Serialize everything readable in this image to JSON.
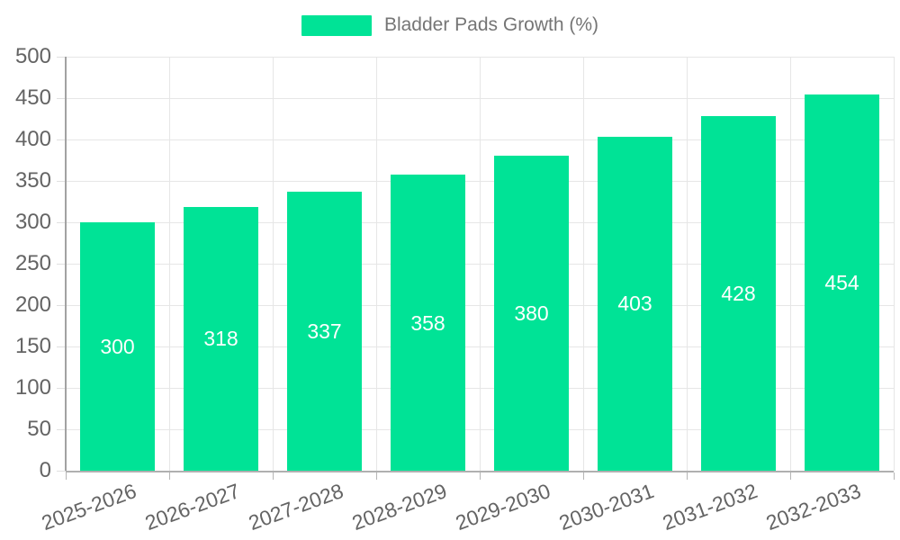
{
  "legend": {
    "items": [
      {
        "label": "Bladder Pads Growth (%)",
        "color": "#00E396"
      }
    ]
  },
  "chart_data": {
    "type": "bar",
    "title": "",
    "categories": [
      "2025-2026",
      "2026-2027",
      "2027-2028",
      "2028-2029",
      "2029-2030",
      "2030-2031",
      "2031-2032",
      "2032-2033"
    ],
    "series": [
      {
        "name": "Bladder Pads Growth (%)",
        "values": [
          300,
          318,
          337,
          358,
          380,
          403,
          428,
          454
        ],
        "color": "#00E396"
      }
    ],
    "value_labels": [
      300,
      318,
      337,
      358,
      380,
      403,
      428,
      454
    ],
    "xlabel": "",
    "ylabel": "",
    "ylim": [
      0,
      500
    ],
    "ytick_step": 50,
    "ytick_labels": [
      "0",
      "50",
      "100",
      "150",
      "200",
      "250",
      "300",
      "350",
      "400",
      "450",
      "500"
    ],
    "grid": true,
    "legend_position": "top-center",
    "value_label_position": "inside-center",
    "x_label_rotation_deg": -20,
    "colors": {
      "bar": "#00E396",
      "grid_line": "#e6e6e6",
      "y_axis_line": "#a2a2a2",
      "x_axis_line": "#b0b0b0",
      "axis_label": "#646464",
      "legend_label": "#757575",
      "value_label": "#ffffff",
      "background": "#ffffff"
    }
  }
}
